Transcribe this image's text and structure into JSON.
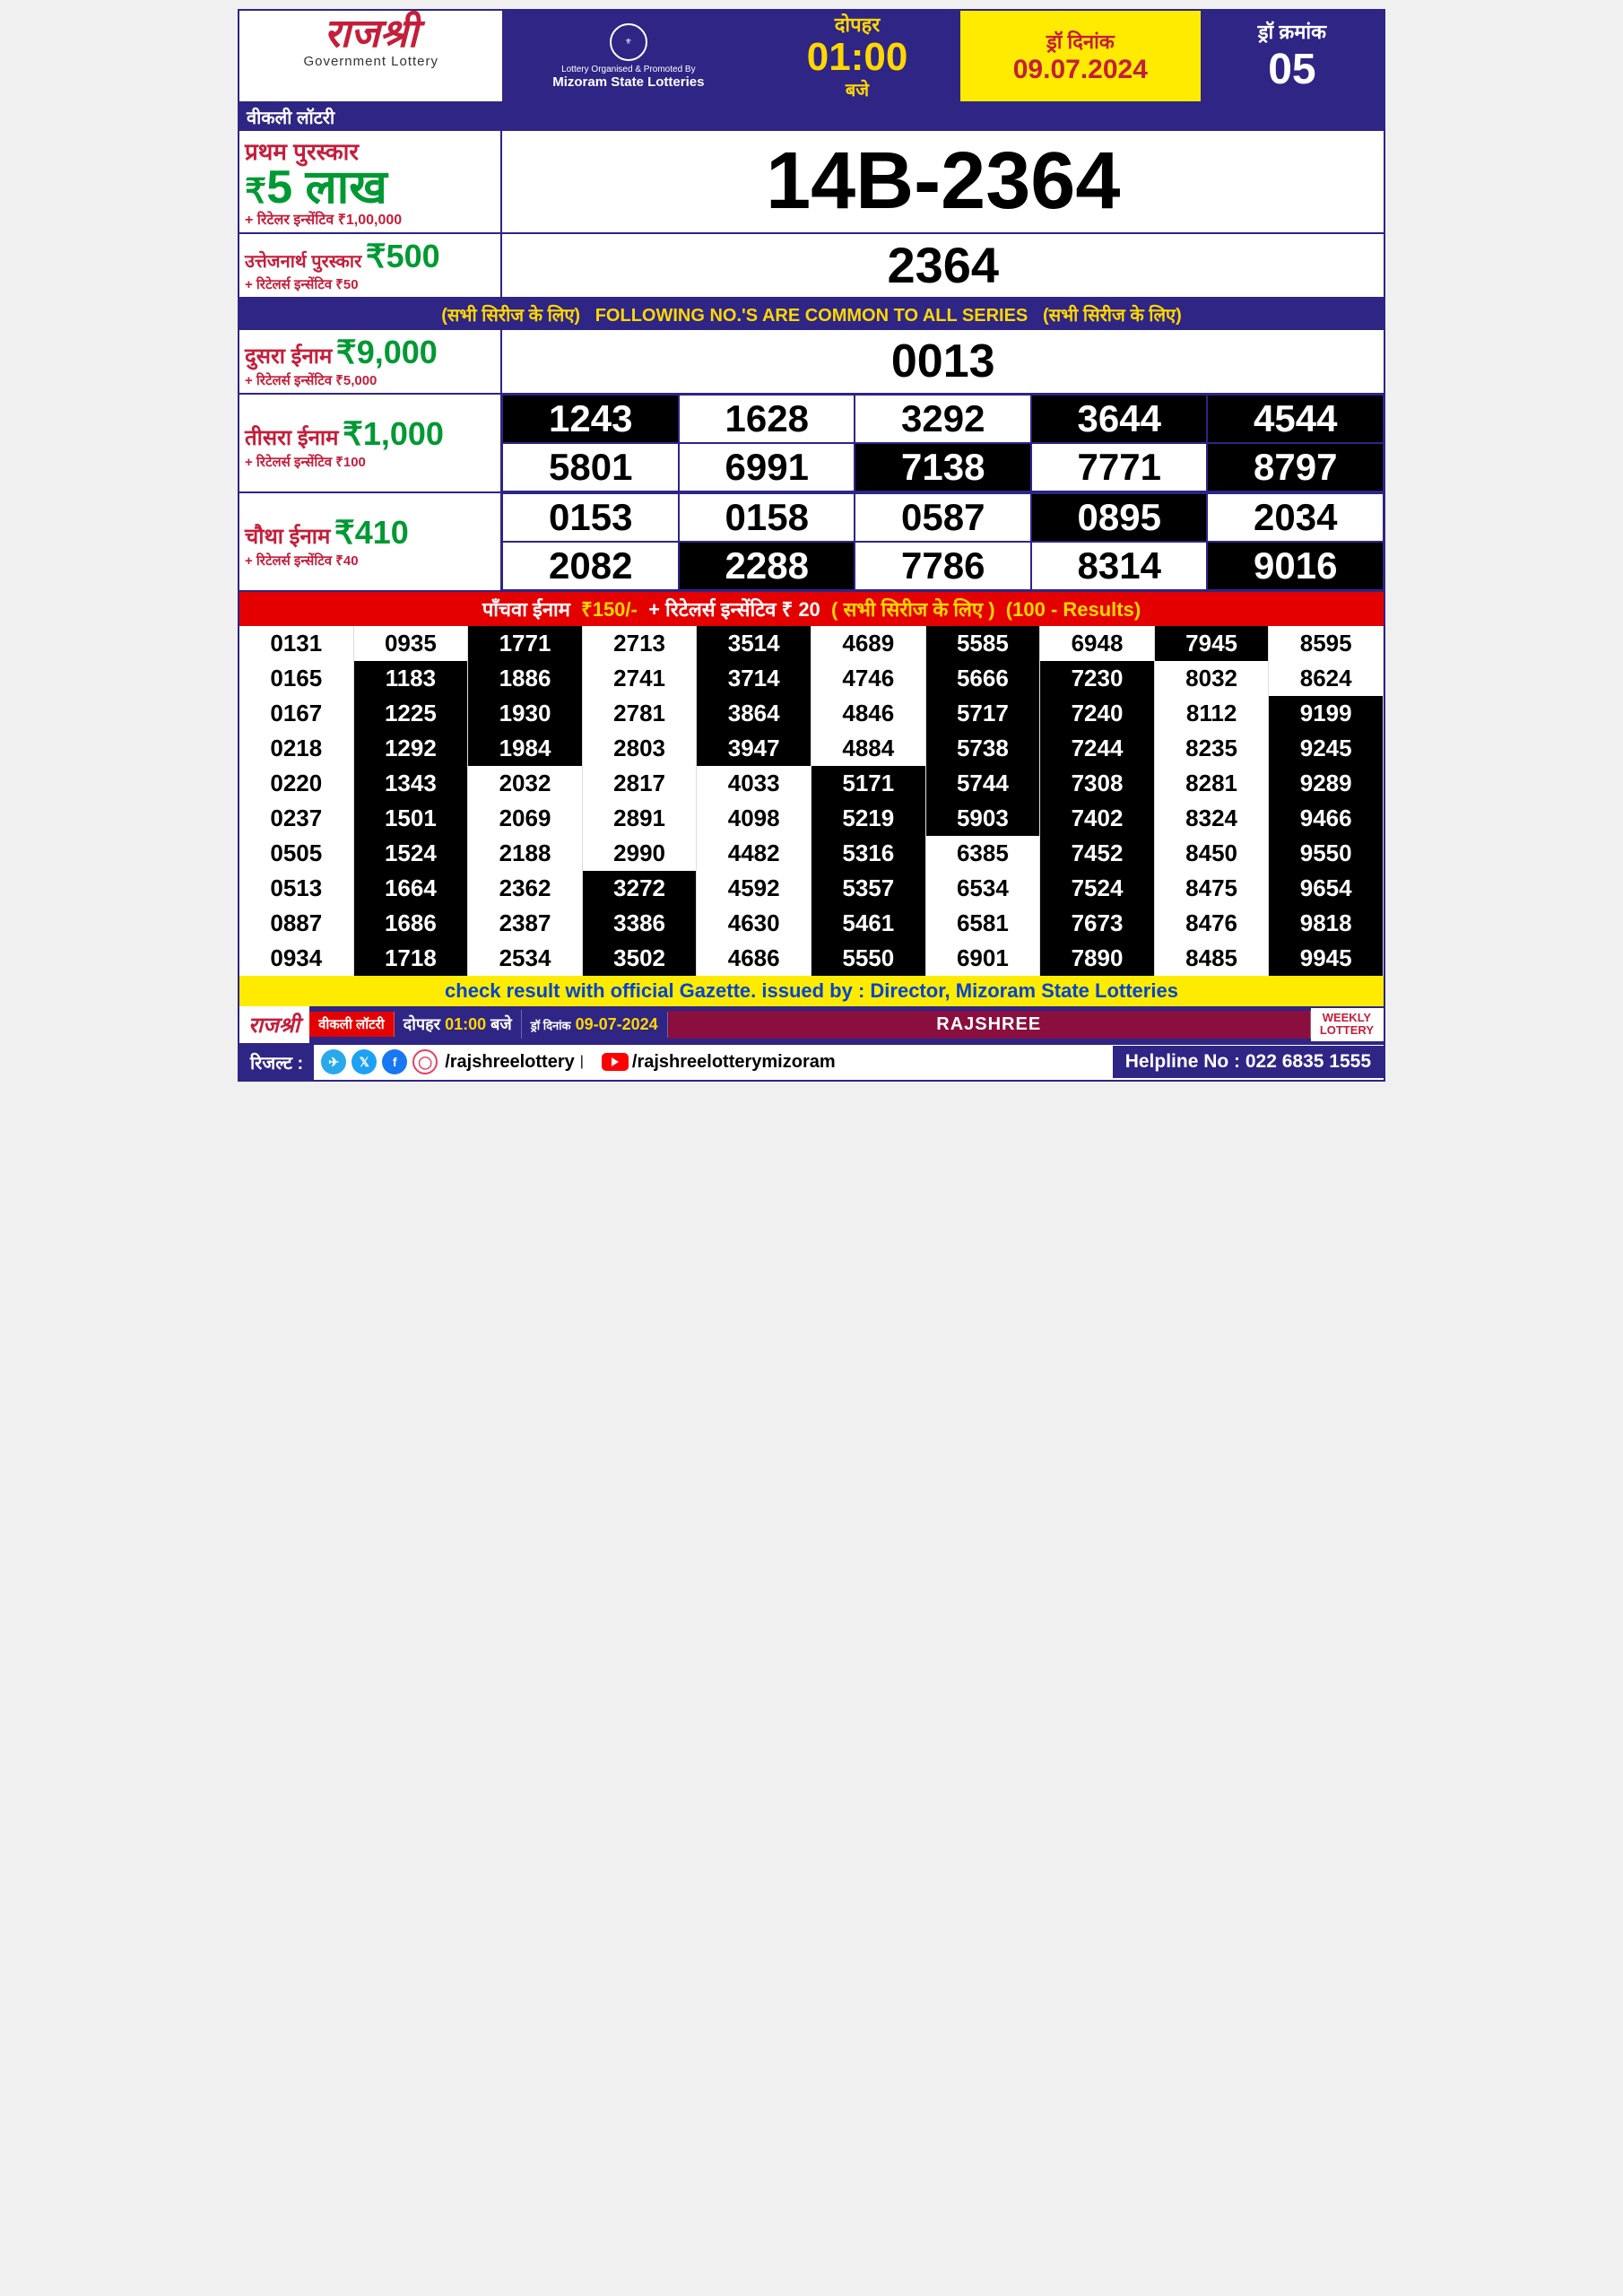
{
  "header": {
    "logo_title": "राजश्री",
    "logo_sub": "Government Lottery",
    "org_text1": "Lottery Organised & Promoted By",
    "org_text2": "Mizoram State Lotteries",
    "time_top": "दोपहर",
    "time_main": "01:00",
    "time_bot": "बजे",
    "date_label": "ड्रॉ दिनांक",
    "date_val": "09.07.2024",
    "serial_label": "ड्रॉ क्रमांक",
    "serial_val": "05"
  },
  "weekly_bar": "वीकली लॉटरी",
  "first_prize": {
    "title": "प्रथम पुरस्कार",
    "amount": "5 लाख",
    "rupee": "₹",
    "incentive": "+ रिटेलर इन्सेंटिव ₹1,00,000",
    "number": "14B-2364"
  },
  "consolation": {
    "title": "उत्तेजनार्थ पुरस्कार",
    "amount": "₹500",
    "incentive": "+ रिटेलर्स इन्सेंटिव ₹50",
    "number": "2364"
  },
  "common_bar": {
    "left": "(सभी सिरीज के लिए)",
    "mid": "FOLLOWING NO.'S ARE COMMON TO ALL SERIES",
    "right": "(सभी सिरीज के लिए)"
  },
  "second_prize": {
    "title": "दुसरा ईनाम",
    "amount": "₹9,000",
    "incentive": "+ रिटेलर्स इन्सेंटिव ₹5,000",
    "number": "0013"
  },
  "third_prize": {
    "title": "तीसरा ईनाम",
    "amount": "₹1,000",
    "incentive": "+ रिटेलर्स इन्सेंटिव ₹100",
    "numbers": [
      {
        "v": "1243",
        "d": true
      },
      {
        "v": "1628",
        "d": false
      },
      {
        "v": "3292",
        "d": false
      },
      {
        "v": "3644",
        "d": true
      },
      {
        "v": "4544",
        "d": true
      },
      {
        "v": "5801",
        "d": false
      },
      {
        "v": "6991",
        "d": false
      },
      {
        "v": "7138",
        "d": true
      },
      {
        "v": "7771",
        "d": false
      },
      {
        "v": "8797",
        "d": true
      }
    ]
  },
  "fourth_prize": {
    "title": "चौथा ईनाम",
    "amount": "₹410",
    "incentive": "+ रिटेलर्स इन्सेंटिव ₹40",
    "numbers": [
      {
        "v": "0153",
        "d": false
      },
      {
        "v": "0158",
        "d": false
      },
      {
        "v": "0587",
        "d": false
      },
      {
        "v": "0895",
        "d": true
      },
      {
        "v": "2034",
        "d": false
      },
      {
        "v": "2082",
        "d": false
      },
      {
        "v": "2288",
        "d": true
      },
      {
        "v": "7786",
        "d": false
      },
      {
        "v": "8314",
        "d": false
      },
      {
        "v": "9016",
        "d": true
      }
    ]
  },
  "fifth_bar": {
    "title": "पाँचवा ईनाम",
    "amount": "₹150/-",
    "incentive": "+ रिटेलर्स इन्सेंटिव ₹ 20",
    "series": "( सभी सिरीज के लिए )",
    "count": "(100 - Results)"
  },
  "fifth_numbers": [
    [
      {
        "v": "0131",
        "d": 0
      },
      {
        "v": "0935",
        "d": 0
      },
      {
        "v": "1771",
        "d": 1
      },
      {
        "v": "2713",
        "d": 0
      },
      {
        "v": "3514",
        "d": 1
      },
      {
        "v": "4689",
        "d": 0
      },
      {
        "v": "5585",
        "d": 1
      },
      {
        "v": "6948",
        "d": 0
      },
      {
        "v": "7945",
        "d": 1
      },
      {
        "v": "8595",
        "d": 0
      }
    ],
    [
      {
        "v": "0165",
        "d": 0
      },
      {
        "v": "1183",
        "d": 1
      },
      {
        "v": "1886",
        "d": 1
      },
      {
        "v": "2741",
        "d": 0
      },
      {
        "v": "3714",
        "d": 1
      },
      {
        "v": "4746",
        "d": 0
      },
      {
        "v": "5666",
        "d": 1
      },
      {
        "v": "7230",
        "d": 1
      },
      {
        "v": "8032",
        "d": 0
      },
      {
        "v": "8624",
        "d": 0
      }
    ],
    [
      {
        "v": "0167",
        "d": 0
      },
      {
        "v": "1225",
        "d": 1
      },
      {
        "v": "1930",
        "d": 1
      },
      {
        "v": "2781",
        "d": 0
      },
      {
        "v": "3864",
        "d": 1
      },
      {
        "v": "4846",
        "d": 0
      },
      {
        "v": "5717",
        "d": 1
      },
      {
        "v": "7240",
        "d": 1
      },
      {
        "v": "8112",
        "d": 0
      },
      {
        "v": "9199",
        "d": 1
      }
    ],
    [
      {
        "v": "0218",
        "d": 0
      },
      {
        "v": "1292",
        "d": 1
      },
      {
        "v": "1984",
        "d": 1
      },
      {
        "v": "2803",
        "d": 0
      },
      {
        "v": "3947",
        "d": 1
      },
      {
        "v": "4884",
        "d": 0
      },
      {
        "v": "5738",
        "d": 1
      },
      {
        "v": "7244",
        "d": 1
      },
      {
        "v": "8235",
        "d": 0
      },
      {
        "v": "9245",
        "d": 1
      }
    ],
    [
      {
        "v": "0220",
        "d": 0
      },
      {
        "v": "1343",
        "d": 1
      },
      {
        "v": "2032",
        "d": 0
      },
      {
        "v": "2817",
        "d": 0
      },
      {
        "v": "4033",
        "d": 0
      },
      {
        "v": "5171",
        "d": 1
      },
      {
        "v": "5744",
        "d": 1
      },
      {
        "v": "7308",
        "d": 1
      },
      {
        "v": "8281",
        "d": 0
      },
      {
        "v": "9289",
        "d": 1
      }
    ],
    [
      {
        "v": "0237",
        "d": 0
      },
      {
        "v": "1501",
        "d": 1
      },
      {
        "v": "2069",
        "d": 0
      },
      {
        "v": "2891",
        "d": 0
      },
      {
        "v": "4098",
        "d": 0
      },
      {
        "v": "5219",
        "d": 1
      },
      {
        "v": "5903",
        "d": 1
      },
      {
        "v": "7402",
        "d": 1
      },
      {
        "v": "8324",
        "d": 0
      },
      {
        "v": "9466",
        "d": 1
      }
    ],
    [
      {
        "v": "0505",
        "d": 0
      },
      {
        "v": "1524",
        "d": 1
      },
      {
        "v": "2188",
        "d": 0
      },
      {
        "v": "2990",
        "d": 0
      },
      {
        "v": "4482",
        "d": 0
      },
      {
        "v": "5316",
        "d": 1
      },
      {
        "v": "6385",
        "d": 0
      },
      {
        "v": "7452",
        "d": 1
      },
      {
        "v": "8450",
        "d": 0
      },
      {
        "v": "9550",
        "d": 1
      }
    ],
    [
      {
        "v": "0513",
        "d": 0
      },
      {
        "v": "1664",
        "d": 1
      },
      {
        "v": "2362",
        "d": 0
      },
      {
        "v": "3272",
        "d": 1
      },
      {
        "v": "4592",
        "d": 0
      },
      {
        "v": "5357",
        "d": 1
      },
      {
        "v": "6534",
        "d": 0
      },
      {
        "v": "7524",
        "d": 1
      },
      {
        "v": "8475",
        "d": 0
      },
      {
        "v": "9654",
        "d": 1
      }
    ],
    [
      {
        "v": "0887",
        "d": 0
      },
      {
        "v": "1686",
        "d": 1
      },
      {
        "v": "2387",
        "d": 0
      },
      {
        "v": "3386",
        "d": 1
      },
      {
        "v": "4630",
        "d": 0
      },
      {
        "v": "5461",
        "d": 1
      },
      {
        "v": "6581",
        "d": 0
      },
      {
        "v": "7673",
        "d": 1
      },
      {
        "v": "8476",
        "d": 0
      },
      {
        "v": "9818",
        "d": 1
      }
    ],
    [
      {
        "v": "0934",
        "d": 0
      },
      {
        "v": "1718",
        "d": 1
      },
      {
        "v": "2534",
        "d": 0
      },
      {
        "v": "3502",
        "d": 1
      },
      {
        "v": "4686",
        "d": 0
      },
      {
        "v": "5550",
        "d": 1
      },
      {
        "v": "6901",
        "d": 0
      },
      {
        "v": "7890",
        "d": 1
      },
      {
        "v": "8485",
        "d": 0
      },
      {
        "v": "9945",
        "d": 1
      }
    ]
  ],
  "gazette": "check result with official Gazette. issued by : Director, Mizoram State Lotteries",
  "footer": {
    "rajshri": "राजश्री",
    "weekly": "वीकली लॉटरी",
    "time_label": "दोपहर",
    "time_val": "01:00",
    "time_suf": "बजे",
    "date_label": "ड्रॉ दिनांक",
    "date_val": "09-07-2024",
    "rajshree": "RAJSHREE",
    "wl1": "WEEKLY",
    "wl2": "LOTTERY"
  },
  "social": {
    "label": "रिजल्ट :",
    "handle1": "/rajshreelottery",
    "handle2": "/rajshreelotterymizoram",
    "helpline": "Helpline No : 022 6835 1555"
  },
  "colors": {
    "telegram": "#29a9ea",
    "twitter": "#1da1f2",
    "facebook": "#1877f2",
    "instagram": "#e4405f"
  }
}
